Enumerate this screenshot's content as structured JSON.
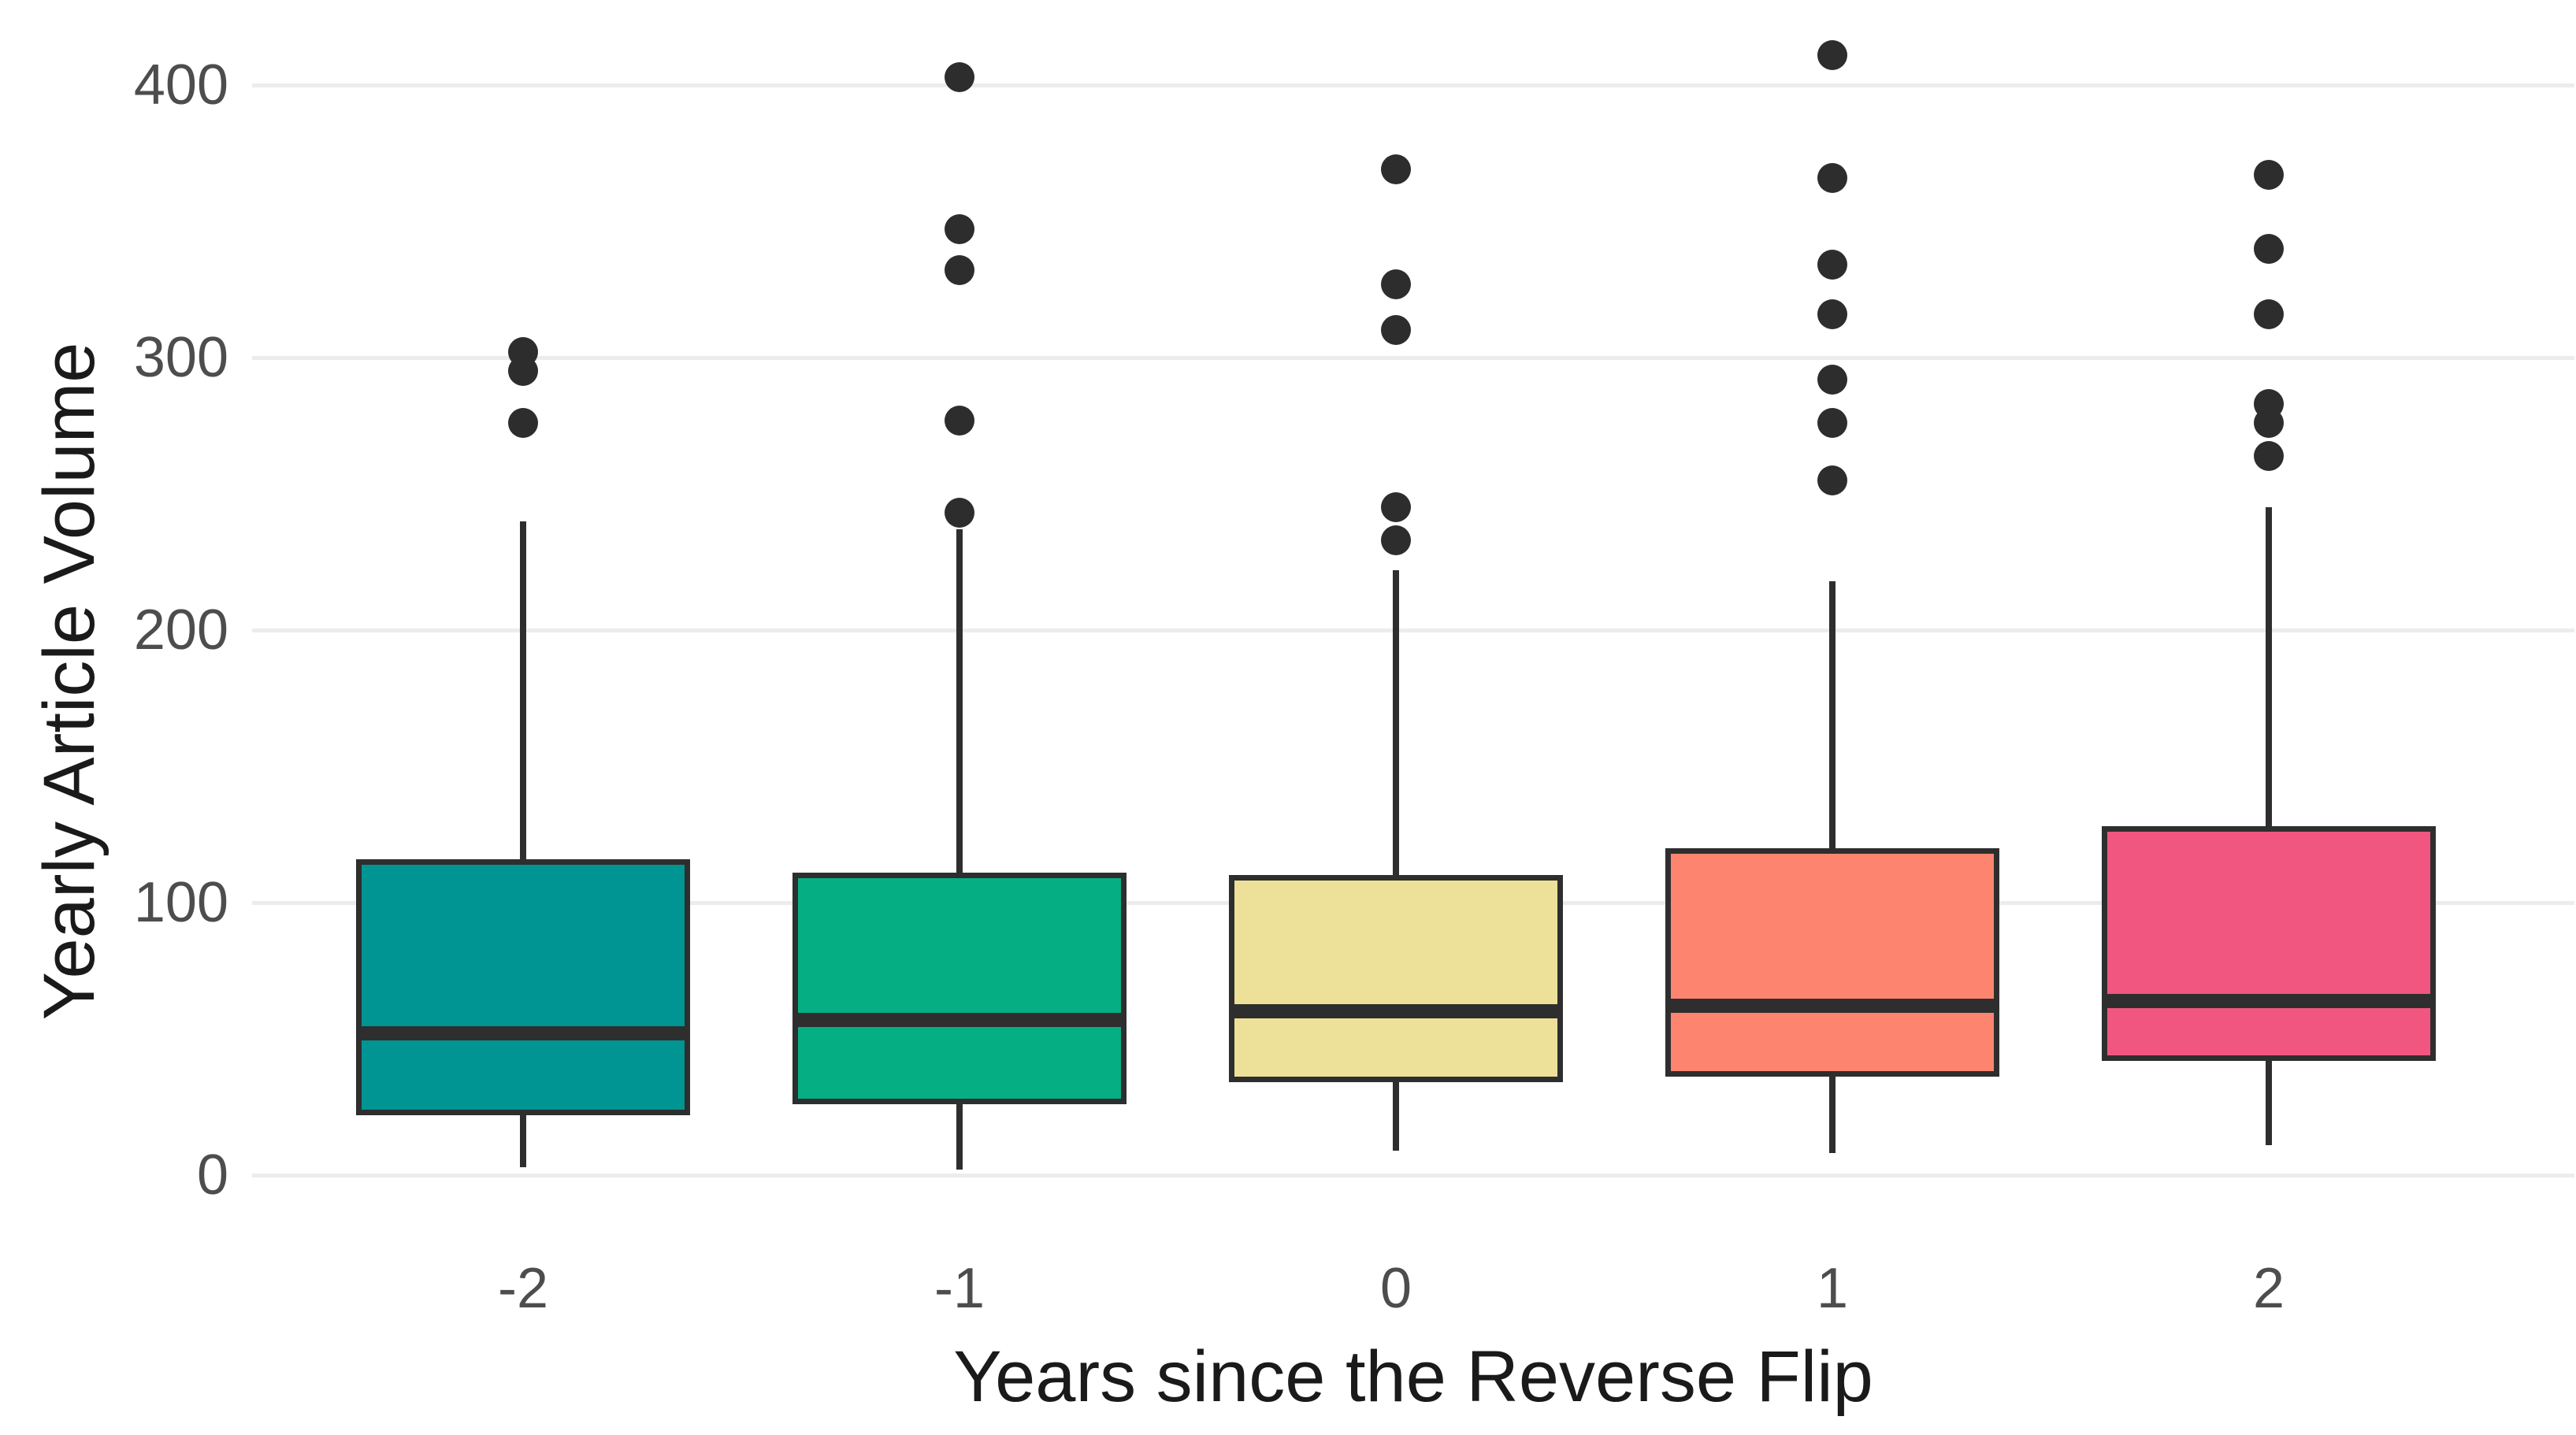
{
  "chart_data": {
    "type": "boxplot",
    "title": "",
    "xlabel": "Years since the Reverse Flip",
    "ylabel": "Yearly Article Volume",
    "categories": [
      "-2",
      "-1",
      "0",
      "1",
      "2"
    ],
    "yticks": [
      0,
      100,
      200,
      300,
      400
    ],
    "ylim": [
      0,
      420
    ],
    "grid": "horizontal-only",
    "legend": "none",
    "background_color": "#FFFFFF",
    "gridline_color": "#ECECEC",
    "tick_label_color": "#4D4D4D",
    "axis_title_color": "#1A1A1A",
    "box_outline_color": "#2E2E2E",
    "outlier_color": "#2D2D2D",
    "series": [
      {
        "category": "-2",
        "color": "#009492",
        "whisker_low": 3,
        "q1": 22,
        "median": 52,
        "q3": 116,
        "whisker_high": 240,
        "outliers": [
          276,
          295,
          302
        ]
      },
      {
        "category": "-1",
        "color": "#06AE83",
        "whisker_low": 2,
        "q1": 26,
        "median": 57,
        "q3": 111,
        "whisker_high": 237,
        "outliers": [
          243,
          277,
          332,
          347,
          403
        ]
      },
      {
        "category": "0",
        "color": "#EDE19A",
        "whisker_low": 9,
        "q1": 34,
        "median": 60,
        "q3": 110,
        "whisker_high": 222,
        "outliers": [
          233,
          245,
          310,
          327,
          369
        ]
      },
      {
        "category": "1",
        "color": "#FD8570",
        "whisker_low": 8,
        "q1": 36,
        "median": 62,
        "q3": 120,
        "whisker_high": 218,
        "outliers": [
          255,
          276,
          292,
          316,
          334,
          366,
          411
        ]
      },
      {
        "category": "2",
        "color": "#F0567F",
        "whisker_low": 11,
        "q1": 42,
        "median": 64,
        "q3": 128,
        "whisker_high": 245,
        "outliers": [
          264,
          276,
          283,
          316,
          340,
          367
        ]
      }
    ]
  }
}
